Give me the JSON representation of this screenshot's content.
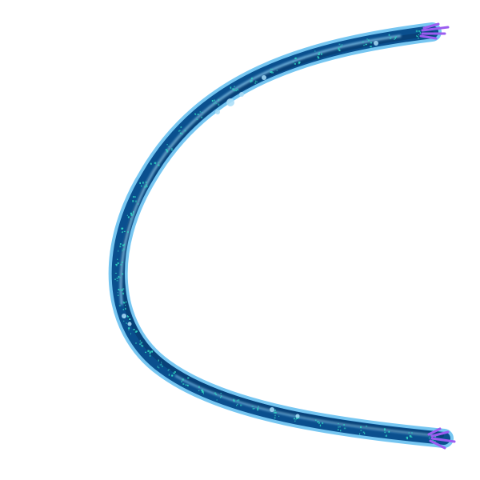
{
  "scene": {
    "background_color": "#ffffff",
    "subject": "curved-arc-stroke",
    "colors": {
      "outer_glow": "#6fc3f0",
      "body": "#0a4f8e",
      "body_dark": "#083d73",
      "highlight": "#9ad8f8",
      "speckles": "#32d6c2",
      "tips": "#9b5cf0"
    },
    "icons": [
      "arc-stroke",
      "tip-flare"
    ]
  }
}
